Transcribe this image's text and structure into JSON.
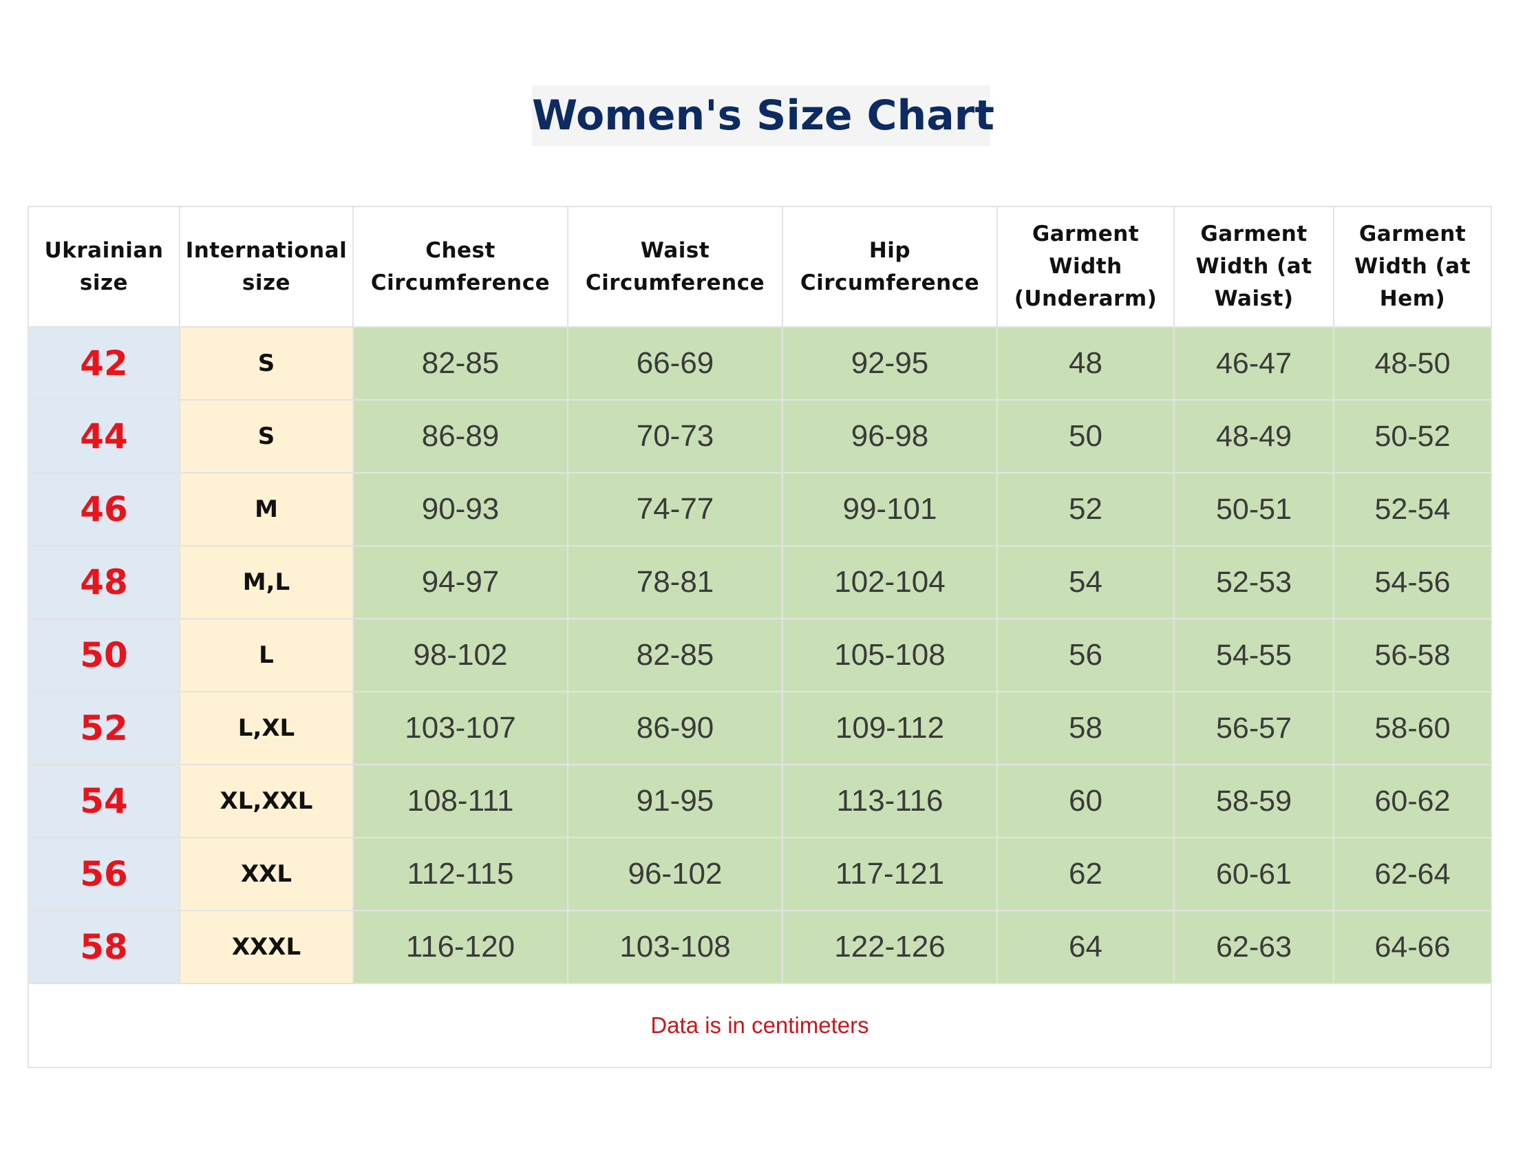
{
  "title": "Women's Size Chart",
  "columns": [
    "Ukrainian size",
    "International size",
    "Chest Circumference",
    "Waist Circumference",
    "Hip Circumference",
    "Garment Width (Underarm)",
    "Garment Width (at Waist)",
    "Garment Width (at Hem)"
  ],
  "rows": [
    {
      "ua": "42",
      "intl": "S",
      "chest": "82-85",
      "waist": "66-69",
      "hip": "92-95",
      "underarm": "48",
      "at_waist": "46-47",
      "at_hem": "48-50"
    },
    {
      "ua": "44",
      "intl": "S",
      "chest": "86-89",
      "waist": "70-73",
      "hip": "96-98",
      "underarm": "50",
      "at_waist": "48-49",
      "at_hem": "50-52"
    },
    {
      "ua": "46",
      "intl": "M",
      "chest": "90-93",
      "waist": "74-77",
      "hip": "99-101",
      "underarm": "52",
      "at_waist": "50-51",
      "at_hem": "52-54"
    },
    {
      "ua": "48",
      "intl": "M,L",
      "chest": "94-97",
      "waist": "78-81",
      "hip": "102-104",
      "underarm": "54",
      "at_waist": "52-53",
      "at_hem": "54-56"
    },
    {
      "ua": "50",
      "intl": "L",
      "chest": "98-102",
      "waist": "82-85",
      "hip": "105-108",
      "underarm": "56",
      "at_waist": "54-55",
      "at_hem": "56-58"
    },
    {
      "ua": "52",
      "intl": "L,XL",
      "chest": "103-107",
      "waist": "86-90",
      "hip": "109-112",
      "underarm": "58",
      "at_waist": "56-57",
      "at_hem": "58-60"
    },
    {
      "ua": "54",
      "intl": "XL,XXL",
      "chest": "108-111",
      "waist": "91-95",
      "hip": "113-116",
      "underarm": "60",
      "at_waist": "58-59",
      "at_hem": "60-62"
    },
    {
      "ua": "56",
      "intl": "XXL",
      "chest": "112-115",
      "waist": "96-102",
      "hip": "117-121",
      "underarm": "62",
      "at_waist": "60-61",
      "at_hem": "62-64"
    },
    {
      "ua": "58",
      "intl": "XXXL",
      "chest": "116-120",
      "waist": "103-108",
      "hip": "122-126",
      "underarm": "64",
      "at_waist": "62-63",
      "at_hem": "64-66"
    }
  ],
  "footer_note": "Data is in centimeters",
  "colors": {
    "title": "#0d2a62",
    "ukrainian_size_text": "#e8141b",
    "ukrainian_size_bg": "#dfe9f4",
    "international_size_bg": "#fff1d4",
    "measurement_bg": "#c9e0b6",
    "footer_text": "#c8171e"
  }
}
